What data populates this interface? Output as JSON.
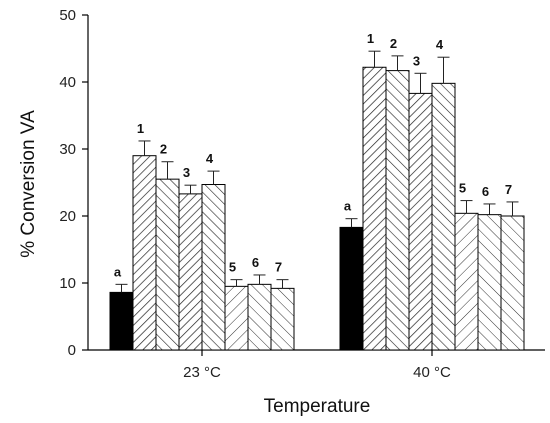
{
  "chart_data": {
    "type": "bar",
    "title": "",
    "xlabel": "Temperature",
    "ylabel": "% Conversion VA",
    "ylim": [
      0,
      50
    ],
    "yticks": [
      0,
      10,
      20,
      30,
      40,
      50
    ],
    "grid": false,
    "categories": [
      "23 °C",
      "40 °C"
    ],
    "series": [
      {
        "label": "a",
        "fill": "solid-black",
        "values": [
          8.6,
          18.3
        ],
        "errors": [
          1.2,
          1.3
        ]
      },
      {
        "label": "1",
        "fill": "hatch-forward",
        "values": [
          29.0,
          42.2
        ],
        "errors": [
          2.2,
          2.4
        ]
      },
      {
        "label": "2",
        "fill": "hatch-backward",
        "values": [
          25.5,
          41.7
        ],
        "errors": [
          2.6,
          2.2
        ]
      },
      {
        "label": "3",
        "fill": "hatch-forward",
        "values": [
          23.3,
          38.3
        ],
        "errors": [
          1.3,
          3.0
        ]
      },
      {
        "label": "4",
        "fill": "hatch-backward",
        "values": [
          24.7,
          39.8
        ],
        "errors": [
          2.0,
          3.9
        ]
      },
      {
        "label": "5",
        "fill": "hatch-forward-light",
        "values": [
          9.5,
          20.4
        ],
        "errors": [
          1.0,
          1.9
        ]
      },
      {
        "label": "6",
        "fill": "hatch-backward-light",
        "values": [
          9.8,
          20.2
        ],
        "errors": [
          1.4,
          1.6
        ]
      },
      {
        "label": "7",
        "fill": "hatch-backward-light",
        "values": [
          9.2,
          20.0
        ],
        "errors": [
          1.3,
          2.1
        ]
      }
    ]
  }
}
